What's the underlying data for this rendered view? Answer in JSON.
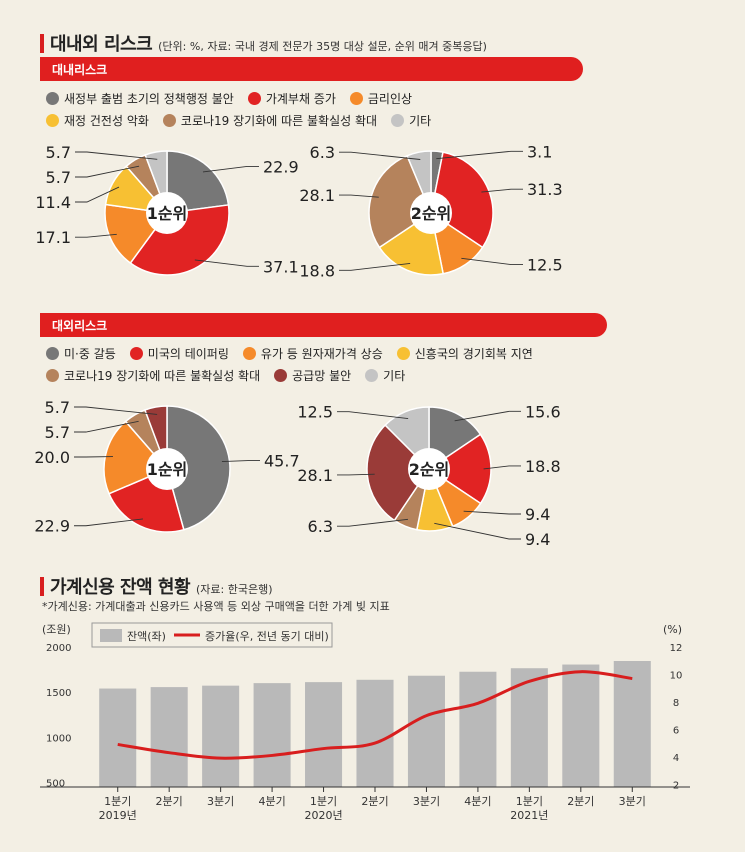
{
  "risk_section": {
    "title": "대내외 리스크",
    "subtitle": "(단위: %, 자료: 국내 경제 전문가 35명 대상 설문, 순위 매겨 중복응답)",
    "domestic_band": "대내리스크",
    "foreign_band": "대외리스크"
  },
  "colors": {
    "gray": "#777777",
    "red": "#e12323",
    "orange": "#f58a2a",
    "yellow": "#f7c033",
    "brown": "#b5835c",
    "maroon": "#9a3b38",
    "lightgray": "#c4c4c4",
    "bar": "#b9b9b9",
    "line": "#d81e1e"
  },
  "domestic_legend": [
    {
      "label": "새정부 출범 초기의 정책행정 불안",
      "color": "#777777"
    },
    {
      "label": "가계부채 증가",
      "color": "#e12323"
    },
    {
      "label": "금리인상",
      "color": "#f58a2a"
    },
    {
      "label": "재정 건전성 악화",
      "color": "#f7c033"
    },
    {
      "label": "코로나19 장기화에 따른 불확실성 확대",
      "color": "#b5835c"
    },
    {
      "label": "기타",
      "color": "#c4c4c4"
    }
  ],
  "foreign_legend": [
    {
      "label": "미·중 갈등",
      "color": "#777777"
    },
    {
      "label": "미국의 테이퍼링",
      "color": "#e12323"
    },
    {
      "label": "유가 등 원자재가격 상승",
      "color": "#f58a2a"
    },
    {
      "label": "신흥국의 경기회복 지연",
      "color": "#f7c033"
    },
    {
      "label": "코로나19 장기화에 따른 불확실성 확대",
      "color": "#b5835c"
    },
    {
      "label": "공급망 불안",
      "color": "#9a3b38"
    },
    {
      "label": "기타",
      "color": "#c4c4c4"
    }
  ],
  "credit_section": {
    "title": "가계신용 잔액 현황",
    "subtitle": "(자료: 한국은행)",
    "note": "*가계신용: 가계대출과 신용카드 사용액 등 외상 구매액을 더한 가계 빚 지표"
  },
  "chart_data": [
    {
      "type": "pie",
      "variant": "donut",
      "center_label": "1순위",
      "slices": [
        {
          "name": "새정부 출범 초기의 정책행정 불안",
          "value": 22.9,
          "label": "22.9",
          "color": "#777777"
        },
        {
          "name": "가계부채 증가",
          "value": 37.1,
          "label": "37.1",
          "color": "#e12323"
        },
        {
          "name": "금리인상",
          "value": 17.1,
          "label": "17.1",
          "color": "#f58a2a"
        },
        {
          "name": "재정 건전성 악화",
          "value": 11.4,
          "label": "11.4",
          "color": "#f7c033"
        },
        {
          "name": "코로나19 장기화에 따른 불확실성 확대",
          "value": 5.7,
          "label": "5.7",
          "color": "#b5835c"
        },
        {
          "name": "기타",
          "value": 5.7,
          "label": "5.7",
          "color": "#c4c4c4"
        }
      ]
    },
    {
      "type": "pie",
      "variant": "donut",
      "center_label": "2순위",
      "slices": [
        {
          "name": "새정부 출범 초기의 정책행정 불안",
          "value": 3.1,
          "label": "3.1",
          "color": "#777777"
        },
        {
          "name": "가계부채 증가",
          "value": 31.3,
          "label": "31.3",
          "color": "#e12323"
        },
        {
          "name": "금리인상",
          "value": 12.5,
          "label": "12.5",
          "color": "#f58a2a"
        },
        {
          "name": "재정 건전성 악화",
          "value": 18.8,
          "label": "18.8",
          "color": "#f7c033"
        },
        {
          "name": "코로나19 장기화에 따른 불확실성 확대",
          "value": 28.1,
          "label": "28.1",
          "color": "#b5835c"
        },
        {
          "name": "기타",
          "value": 6.3,
          "label": "6.3",
          "color": "#c4c4c4"
        }
      ]
    },
    {
      "type": "pie",
      "variant": "donut",
      "center_label": "1순위",
      "slices": [
        {
          "name": "미·중 갈등",
          "value": 45.7,
          "label": "45.7",
          "color": "#777777"
        },
        {
          "name": "미국의 테이퍼링",
          "value": 22.9,
          "label": "22.9",
          "color": "#e12323"
        },
        {
          "name": "유가 등 원자재가격 상승",
          "value": 20.0,
          "label": "20.0",
          "color": "#f58a2a"
        },
        {
          "name": "코로나19 장기화에 따른 불확실성 확대",
          "value": 5.7,
          "label": "5.7",
          "color": "#b5835c"
        },
        {
          "name": "공급망 불안",
          "value": 5.7,
          "label": "5.7",
          "color": "#9a3b38"
        }
      ]
    },
    {
      "type": "pie",
      "variant": "donut",
      "center_label": "2순위",
      "slices": [
        {
          "name": "미·중 갈등",
          "value": 15.6,
          "label": "15.6",
          "color": "#777777"
        },
        {
          "name": "미국의 테이퍼링",
          "value": 18.8,
          "label": "18.8",
          "color": "#e12323"
        },
        {
          "name": "유가 등 원자재가격 상승",
          "value": 9.4,
          "label": "9.4",
          "color": "#f58a2a"
        },
        {
          "name": "신흥국의 경기회복 지연",
          "value": 9.4,
          "label": "9.4",
          "color": "#f7c033"
        },
        {
          "name": "코로나19 장기화에 따른 불확실성 확대",
          "value": 6.3,
          "label": "6.3",
          "color": "#b5835c"
        },
        {
          "name": "공급망 불안",
          "value": 28.1,
          "label": "28.1",
          "color": "#9a3b38"
        },
        {
          "name": "기타",
          "value": 12.5,
          "label": "12.5",
          "color": "#c4c4c4"
        }
      ]
    },
    {
      "type": "bar",
      "combo": "bar+line",
      "categories": [
        "1분기",
        "2분기",
        "3분기",
        "4분기",
        "1분기",
        "2분기",
        "3분기",
        "4분기",
        "1분기",
        "2분기",
        "3분기"
      ],
      "year_labels": [
        {
          "label": "2019년",
          "index": 0
        },
        {
          "label": "2020년",
          "index": 4
        },
        {
          "label": "2021년",
          "index": 8
        }
      ],
      "series": [
        {
          "name": "잔액(좌)",
          "type": "bar",
          "axis": "left",
          "values": [
            1540,
            1556,
            1572,
            1600,
            1611,
            1637,
            1682,
            1726,
            1765,
            1806,
            1845
          ]
        },
        {
          "name": "증가율(우, 전년 동기 대비)",
          "type": "line",
          "axis": "right",
          "values": [
            4.9,
            4.3,
            3.9,
            4.1,
            4.6,
            5.0,
            7.0,
            7.9,
            9.5,
            10.2,
            9.7
          ]
        }
      ],
      "left_axis": {
        "unit": "(조원)",
        "ylim": [
          450,
          2000
        ],
        "ticks": [
          500,
          1000,
          1500,
          2000
        ]
      },
      "right_axis": {
        "unit": "(%)",
        "ylim": [
          1.8,
          12
        ],
        "ticks": [
          2,
          4,
          6,
          8,
          10,
          12
        ]
      }
    }
  ]
}
